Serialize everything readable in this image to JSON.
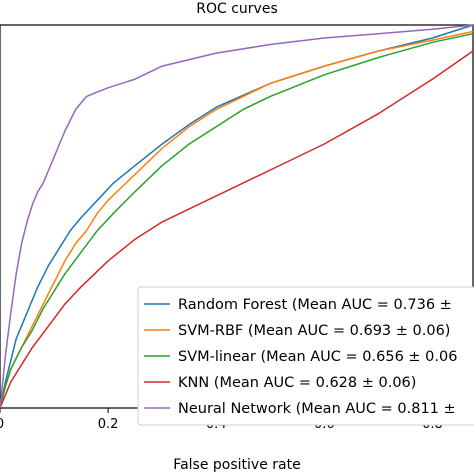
{
  "chart_data": {
    "type": "line",
    "title": "ROC curves",
    "xlabel": "False positive rate",
    "ylabel": "",
    "xlim": [
      0,
      0.875
    ],
    "ylim": [
      0,
      0.885
    ],
    "xticks": [
      0.0,
      0.2,
      0.4,
      0.6,
      0.8
    ],
    "xtick_labels": [
      "0",
      "0.2",
      "0.4",
      "0.6",
      "0.8"
    ],
    "grid": false,
    "legend_position": "lower-right",
    "series": [
      {
        "name": "Random Forest (Mean AUC = 0.736 ±",
        "color": "#1f77b4",
        "x": [
          0.0,
          0.01,
          0.02,
          0.03,
          0.05,
          0.07,
          0.09,
          0.11,
          0.13,
          0.15,
          0.18,
          0.21,
          0.25,
          0.3,
          0.35,
          0.4,
          0.5,
          0.6,
          0.7,
          0.8,
          0.875
        ],
        "y": [
          0.0,
          0.06,
          0.11,
          0.16,
          0.22,
          0.28,
          0.33,
          0.37,
          0.41,
          0.44,
          0.48,
          0.52,
          0.56,
          0.61,
          0.655,
          0.695,
          0.75,
          0.79,
          0.825,
          0.855,
          0.885
        ]
      },
      {
        "name": "SVM-RBF (Mean AUC = 0.693 ± 0.06)",
        "color": "#ff7f0e",
        "x": [
          0.0,
          0.01,
          0.02,
          0.04,
          0.06,
          0.08,
          0.1,
          0.12,
          0.14,
          0.16,
          0.18,
          0.2,
          0.25,
          0.3,
          0.35,
          0.4,
          0.5,
          0.6,
          0.7,
          0.8,
          0.875
        ],
        "y": [
          0.0,
          0.05,
          0.09,
          0.14,
          0.19,
          0.24,
          0.29,
          0.34,
          0.38,
          0.41,
          0.45,
          0.48,
          0.54,
          0.6,
          0.65,
          0.69,
          0.75,
          0.79,
          0.825,
          0.85,
          0.87
        ]
      },
      {
        "name": "SVM-linear (Mean AUC = 0.656 ± 0.06",
        "color": "#2ca02c",
        "x": [
          0.0,
          0.01,
          0.02,
          0.04,
          0.06,
          0.08,
          0.1,
          0.12,
          0.15,
          0.18,
          0.21,
          0.25,
          0.3,
          0.35,
          0.4,
          0.45,
          0.5,
          0.6,
          0.7,
          0.8,
          0.875
        ],
        "y": [
          0.0,
          0.05,
          0.09,
          0.14,
          0.18,
          0.23,
          0.27,
          0.31,
          0.36,
          0.41,
          0.45,
          0.5,
          0.56,
          0.61,
          0.65,
          0.69,
          0.72,
          0.77,
          0.81,
          0.845,
          0.865
        ]
      },
      {
        "name": "KNN (Mean AUC = 0.628 ± 0.06)",
        "color": "#d62728",
        "x": [
          0.0,
          0.01,
          0.02,
          0.04,
          0.06,
          0.09,
          0.12,
          0.15,
          0.2,
          0.25,
          0.3,
          0.35,
          0.4,
          0.5,
          0.6,
          0.7,
          0.8,
          0.875
        ],
        "y": [
          0.0,
          0.03,
          0.06,
          0.1,
          0.14,
          0.19,
          0.24,
          0.28,
          0.34,
          0.39,
          0.43,
          0.46,
          0.49,
          0.55,
          0.61,
          0.68,
          0.76,
          0.825
        ]
      },
      {
        "name": "Neural Network (Mean AUC = 0.811 ±",
        "color": "#9467bd",
        "x": [
          0.0,
          0.01,
          0.02,
          0.03,
          0.04,
          0.05,
          0.06,
          0.07,
          0.08,
          0.1,
          0.12,
          0.14,
          0.16,
          0.18,
          0.2,
          0.25,
          0.3,
          0.35,
          0.4,
          0.5,
          0.6,
          0.7,
          0.8,
          0.875
        ],
        "y": [
          0.0,
          0.12,
          0.22,
          0.31,
          0.38,
          0.43,
          0.47,
          0.5,
          0.52,
          0.58,
          0.64,
          0.69,
          0.72,
          0.73,
          0.74,
          0.76,
          0.79,
          0.805,
          0.82,
          0.84,
          0.855,
          0.865,
          0.875,
          0.885
        ]
      }
    ]
  }
}
